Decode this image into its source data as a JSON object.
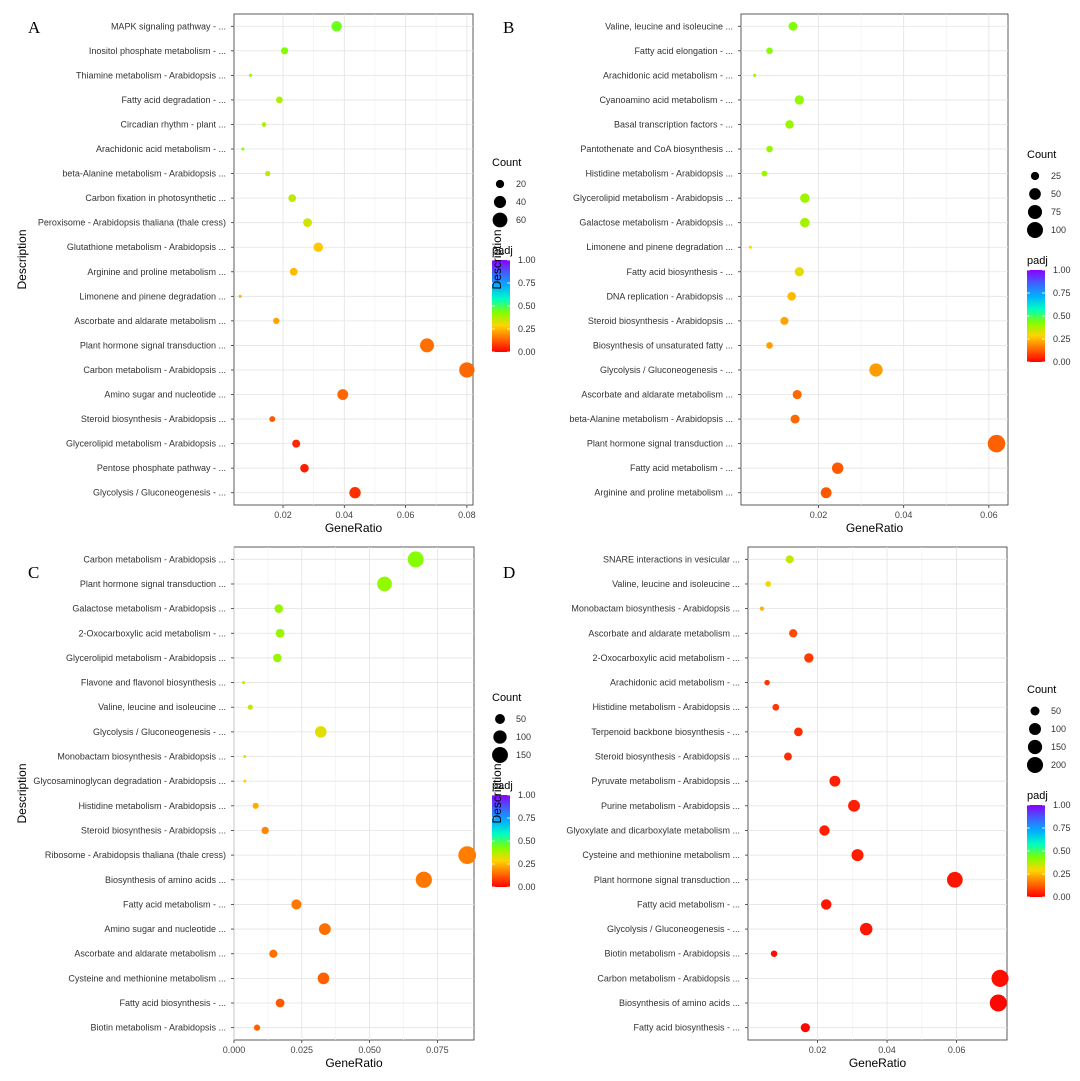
{
  "gradient": {
    "colors": [
      "#ff0000",
      "#ff6a00",
      "#ffd400",
      "#80ff00",
      "#00ffc0",
      "#00b0ff",
      "#4060ff",
      "#8a00ff"
    ]
  },
  "chart_data": [
    {
      "type": "scatter",
      "panel": "A",
      "xlabel": "GeneRatio",
      "ylabel": "Description",
      "xlim": [
        0.004,
        0.082
      ],
      "xticks": [
        0.02,
        0.04,
        0.06,
        0.08
      ],
      "xtick_labels": [
        "0.02",
        "0.04",
        "0.06",
        "0.08"
      ],
      "size_legend": {
        "title": "Count",
        "values": [
          20,
          40,
          60
        ],
        "labels": [
          "20",
          "40",
          "60"
        ]
      },
      "color_legend": {
        "title": "padj",
        "ticks": [
          1.0,
          0.75,
          0.5,
          0.25,
          0.0
        ],
        "labels": [
          "1.00",
          "0.75",
          "0.50",
          "0.25",
          "0.00"
        ]
      },
      "count_range": [
        10,
        90
      ],
      "categories": [
        "MAPK signaling pathway - ...",
        "Inositol phosphate metabolism - ...",
        "Thiamine metabolism - Arabidopsis ...",
        "Fatty acid degradation - ...",
        "Circadian rhythm - plant ...",
        "Arachidonic acid metabolism - ...",
        "beta-Alanine metabolism - Arabidopsis ...",
        "Carbon fixation in photosynthetic ...",
        "Peroxisome - Arabidopsis thaliana (thale cress)",
        "Glutathione metabolism - Arabidopsis ...",
        "Arginine and proline metabolism ...",
        "Limonene and pinene degradation ...",
        "Ascorbate and aldarate metabolism ...",
        "Plant hormone signal transduction ...",
        "Carbon metabolism - Arabidopsis ...",
        "Amino sugar and nucleotide ...",
        "Steroid biosynthesis - Arabidopsis ...",
        "Glycerolipid metabolism - Arabidopsis ...",
        "Pentose phosphate pathway - ...",
        "Glycolysis / Gluconeogenesis - ..."
      ],
      "gene_ratio": [
        0.0375,
        0.0205,
        0.0094,
        0.0188,
        0.0138,
        0.0069,
        0.015,
        0.023,
        0.028,
        0.0315,
        0.0235,
        0.006,
        0.0178,
        0.067,
        0.08,
        0.0395,
        0.0165,
        0.0243,
        0.027,
        0.0435
      ],
      "count": [
        30,
        16,
        7,
        15,
        11,
        5,
        12,
        18,
        22,
        25,
        18,
        4,
        14,
        53,
        64,
        32,
        13,
        19,
        21,
        35
      ],
      "padj": [
        0.45,
        0.43,
        0.41,
        0.38,
        0.37,
        0.42,
        0.36,
        0.36,
        0.34,
        0.27,
        0.25,
        0.24,
        0.22,
        0.15,
        0.14,
        0.14,
        0.12,
        0.05,
        0.04,
        0.06
      ]
    },
    {
      "type": "scatter",
      "panel": "B",
      "xlabel": "GeneRatio",
      "ylabel": "Description",
      "xlim": [
        0.0018,
        0.0645
      ],
      "xticks": [
        0.02,
        0.04,
        0.06
      ],
      "xtick_labels": [
        "0.02",
        "0.04",
        "0.06"
      ],
      "size_legend": {
        "title": "Count",
        "values": [
          25,
          50,
          75,
          100
        ],
        "labels": [
          "25",
          "50",
          "75",
          "100"
        ]
      },
      "color_legend": {
        "title": "padj",
        "ticks": [
          1.0,
          0.75,
          0.5,
          0.25,
          0.0
        ],
        "labels": [
          "1.00",
          "0.75",
          "0.50",
          "0.25",
          "0.00"
        ]
      },
      "count_range": [
        10,
        130
      ],
      "categories": [
        "Valine, leucine and isoleucine ...",
        "Fatty acid elongation - ...",
        "Arachidonic acid metabolism - ...",
        "Cyanoamino acid metabolism - ...",
        "Basal transcription factors - ...",
        "Pantothenate and CoA biosynthesis ...",
        "Histidine metabolism - Arabidopsis ...",
        "Glycerolipid metabolism - Arabidopsis ...",
        "Galactose metabolism - Arabidopsis ...",
        "Limonene and pinene degradation ...",
        "Fatty acid biosynthesis - ...",
        "DNA replication - Arabidopsis ...",
        "Steroid biosynthesis - Arabidopsis ...",
        "Biosynthesis of unsaturated fatty ...",
        "Glycolysis / Gluconeogenesis - ...",
        "Ascorbate and aldarate metabolism ...",
        "beta-Alanine metabolism - Arabidopsis ...",
        "Plant hormone signal transduction ...",
        "Fatty acid metabolism - ...",
        "Arginine and proline metabolism ..."
      ],
      "gene_ratio": [
        0.014,
        0.0085,
        0.005,
        0.0155,
        0.0132,
        0.0085,
        0.0073,
        0.0168,
        0.0168,
        0.004,
        0.0155,
        0.0137,
        0.012,
        0.0085,
        0.0335,
        0.015,
        0.0145,
        0.0618,
        0.0245,
        0.0218
      ],
      "count": [
        28,
        17,
        10,
        31,
        26,
        17,
        14,
        33,
        33,
        8,
        31,
        27,
        24,
        17,
        66,
        30,
        29,
        122,
        48,
        43
      ],
      "padj": [
        0.43,
        0.42,
        0.42,
        0.41,
        0.4,
        0.4,
        0.4,
        0.39,
        0.39,
        0.3,
        0.31,
        0.25,
        0.22,
        0.21,
        0.21,
        0.14,
        0.14,
        0.13,
        0.12,
        0.12
      ]
    },
    {
      "type": "scatter",
      "panel": "C",
      "xlabel": "GeneRatio",
      "ylabel": "Description",
      "xlim": [
        0.0,
        0.0885
      ],
      "xticks": [
        0.0,
        0.025,
        0.05,
        0.075
      ],
      "xtick_labels": [
        "0.000",
        "0.025",
        "0.050",
        "0.075"
      ],
      "size_legend": {
        "title": "Count",
        "values": [
          50,
          100,
          150
        ],
        "labels": [
          "50",
          "100",
          "150"
        ]
      },
      "color_legend": {
        "title": "padj",
        "ticks": [
          1.0,
          0.75,
          0.5,
          0.25,
          0.0
        ],
        "labels": [
          "1.00",
          "0.75",
          "0.50",
          "0.25",
          "0.00"
        ]
      },
      "count_range": [
        10,
        200
      ],
      "categories": [
        "Carbon metabolism - Arabidopsis ...",
        "Plant hormone signal transduction ...",
        "Galactose metabolism - Arabidopsis ...",
        "2-Oxocarboxylic acid metabolism - ...",
        "Glycerolipid metabolism - Arabidopsis ...",
        "Flavone and flavonol biosynthesis ...",
        "Valine, leucine and isoleucine ...",
        "Glycolysis / Gluconeogenesis - ...",
        "Monobactam biosynthesis - Arabidopsis ...",
        "Glycosaminoglycan degradation - Arabidopsis ...",
        "Histidine metabolism - Arabidopsis ...",
        "Steroid biosynthesis - Arabidopsis ...",
        "Ribosome - Arabidopsis thaliana (thale cress)",
        "Biosynthesis of amino acids ...",
        "Fatty acid metabolism - ...",
        "Amino sugar and nucleotide ...",
        "Ascorbate and aldarate metabolism ...",
        "Cysteine and methionine metabolism ...",
        "Fatty acid biosynthesis - ...",
        "Biotin metabolism - Arabidopsis ..."
      ],
      "gene_ratio": [
        0.067,
        0.0555,
        0.0165,
        0.017,
        0.016,
        0.0035,
        0.006,
        0.032,
        0.004,
        0.004,
        0.008,
        0.0115,
        0.086,
        0.07,
        0.023,
        0.0335,
        0.0145,
        0.033,
        0.017,
        0.0085
      ],
      "count": [
        150,
        125,
        37,
        38,
        36,
        8,
        14,
        72,
        9,
        9,
        18,
        26,
        195,
        158,
        52,
        75,
        33,
        74,
        38,
        19
      ],
      "padj": [
        0.42,
        0.41,
        0.4,
        0.4,
        0.4,
        0.36,
        0.35,
        0.32,
        0.3,
        0.28,
        0.23,
        0.18,
        0.17,
        0.16,
        0.16,
        0.15,
        0.15,
        0.13,
        0.12,
        0.13
      ]
    },
    {
      "type": "scatter",
      "panel": "D",
      "xlabel": "GeneRatio",
      "ylabel": "Description",
      "xlim": [
        0.0,
        0.0745
      ],
      "xticks": [
        0.02,
        0.04,
        0.06
      ],
      "xtick_labels": [
        "0.02",
        "0.04",
        "0.06"
      ],
      "size_legend": {
        "title": "Count",
        "values": [
          50,
          100,
          150,
          200
        ],
        "labels": [
          "50",
          "100",
          "150",
          "200"
        ]
      },
      "color_legend": {
        "title": "padj",
        "ticks": [
          1.0,
          0.75,
          0.5,
          0.25,
          0.0
        ],
        "labels": [
          "1.00",
          "0.75",
          "0.50",
          "0.25",
          "0.00"
        ]
      },
      "count_range": [
        10,
        260
      ],
      "categories": [
        "SNARE interactions in vesicular ...",
        "Valine, leucine and isoleucine ...",
        "Monobactam biosynthesis - Arabidopsis ...",
        "Ascorbate and aldarate metabolism ...",
        "2-Oxocarboxylic acid metabolism - ...",
        "Arachidonic acid metabolism - ...",
        "Histidine metabolism - Arabidopsis ...",
        "Terpenoid backbone biosynthesis - ...",
        "Steroid biosynthesis - Arabidopsis ...",
        "Pyruvate metabolism - Arabidopsis ...",
        "Purine metabolism - Arabidopsis ...",
        "Glyoxylate and dicarboxylate metabolism ...",
        "Cysteine and methionine metabolism ...",
        "Plant hormone signal transduction ...",
        "Fatty acid metabolism - ...",
        "Glycolysis / Gluconeogenesis - ...",
        "Biotin metabolism - Arabidopsis ...",
        "Carbon metabolism - Arabidopsis ...",
        "Biosynthesis of amino acids ...",
        "Fatty acid biosynthesis - ..."
      ],
      "gene_ratio": [
        0.012,
        0.0058,
        0.004,
        0.013,
        0.0175,
        0.0055,
        0.008,
        0.0145,
        0.0115,
        0.025,
        0.0305,
        0.022,
        0.0315,
        0.0595,
        0.0225,
        0.034,
        0.0075,
        0.0725,
        0.072,
        0.0165
      ],
      "count": [
        38,
        18,
        12,
        41,
        56,
        17,
        26,
        46,
        37,
        80,
        98,
        70,
        101,
        190,
        72,
        109,
        24,
        232,
        230,
        53
      ],
      "padj": [
        0.36,
        0.3,
        0.24,
        0.1,
        0.08,
        0.07,
        0.07,
        0.06,
        0.06,
        0.04,
        0.04,
        0.04,
        0.04,
        0.03,
        0.03,
        0.03,
        0.02,
        0.02,
        0.01,
        0.01
      ]
    }
  ]
}
